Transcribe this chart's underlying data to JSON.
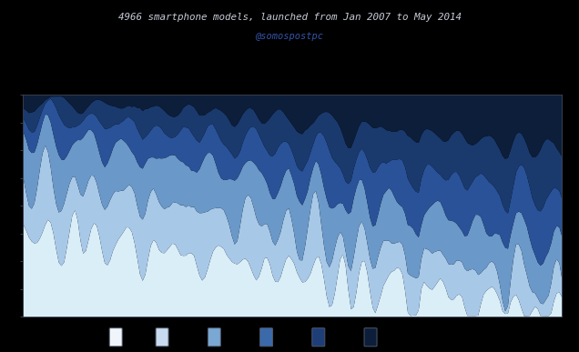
{
  "title_line1": "4966 smartphone models, launched from Jan 2007 to May 2014",
  "title_line2": "@somospostpc",
  "title_color": "#c8ccd8",
  "subtitle_color": "#3355aa",
  "background_color": "#000000",
  "series_colors": [
    "#daeef8",
    "#a8c8e8",
    "#6a98c8",
    "#2a5298",
    "#1a3a6e",
    "#0d1e3a"
  ],
  "legend_colors": [
    "#f0f5fb",
    "#c8daf0",
    "#7aa8d4",
    "#3a6aaa",
    "#1e3e78",
    "#0d1e3a"
  ],
  "figsize": [
    6.36,
    3.87
  ],
  "dpi": 100
}
